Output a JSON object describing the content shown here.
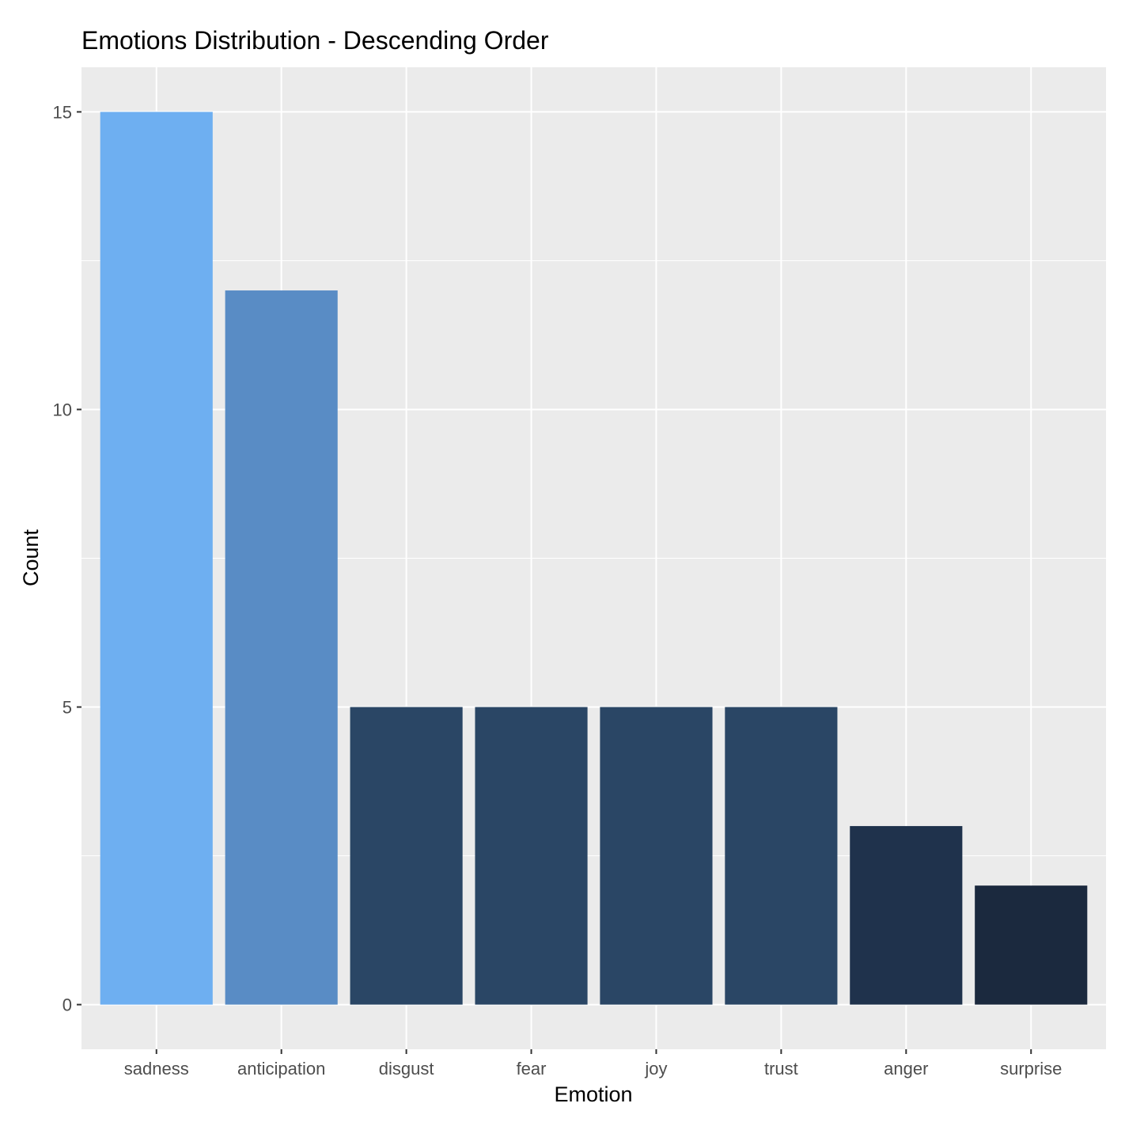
{
  "chart_data": {
    "type": "bar",
    "title": "Emotions Distribution - Descending Order",
    "xlabel": "Emotion",
    "ylabel": "Count",
    "categories": [
      "sadness",
      "anticipation",
      "disgust",
      "fear",
      "joy",
      "trust",
      "anger",
      "surprise"
    ],
    "values": [
      15,
      12,
      5,
      5,
      5,
      5,
      3,
      2
    ],
    "colors": [
      "#6EAFF1",
      "#598CC5",
      "#2A4665",
      "#2A4665",
      "#2A4665",
      "#2A4665",
      "#1F324C",
      "#1B293E"
    ],
    "yticks": [
      0,
      5,
      10,
      15
    ],
    "ytick_labels": [
      "0",
      "5",
      "10",
      "15"
    ],
    "ylim": [
      -0.75,
      15.75
    ],
    "grid": true,
    "legend": "none",
    "panel_background": "#EBEBEB"
  }
}
